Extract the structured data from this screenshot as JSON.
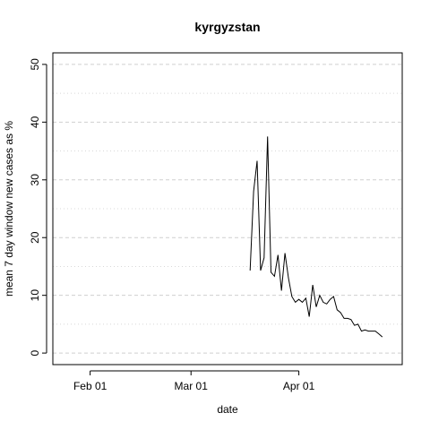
{
  "chart_data": {
    "type": "line",
    "title": "kyrgyzstan",
    "xlabel": "date",
    "ylabel": "mean  7  day window new cases as %",
    "ylim": [
      0,
      50
    ],
    "xlim": [
      "2020-01-25",
      "2020-04-27"
    ],
    "y_ticks": [
      "0",
      "10",
      "20",
      "30",
      "40",
      "50"
    ],
    "y_tick_values": [
      0,
      10,
      20,
      30,
      40,
      50
    ],
    "x_ticks": [
      {
        "label": "Feb 01",
        "date": "2020-02-01"
      },
      {
        "label": "Mar 01",
        "date": "2020-03-01"
      },
      {
        "label": "Apr 01",
        "date": "2020-04-01"
      }
    ],
    "grid": true,
    "series": [
      {
        "color": "#000000",
        "points": [
          {
            "x": "2020-03-18",
            "y": 14.3
          },
          {
            "x": "2020-03-19",
            "y": 28.0
          },
          {
            "x": "2020-03-20",
            "y": 33.3
          },
          {
            "x": "2020-03-21",
            "y": 14.3
          },
          {
            "x": "2020-03-22",
            "y": 16.5
          },
          {
            "x": "2020-03-23",
            "y": 37.5
          },
          {
            "x": "2020-03-24",
            "y": 14.0
          },
          {
            "x": "2020-03-25",
            "y": 13.3
          },
          {
            "x": "2020-03-26",
            "y": 17.0
          },
          {
            "x": "2020-03-27",
            "y": 10.8
          },
          {
            "x": "2020-03-28",
            "y": 17.3
          },
          {
            "x": "2020-03-29",
            "y": 13.0
          },
          {
            "x": "2020-03-30",
            "y": 9.8
          },
          {
            "x": "2020-03-31",
            "y": 8.8
          },
          {
            "x": "2020-04-01",
            "y": 9.3
          },
          {
            "x": "2020-04-02",
            "y": 8.8
          },
          {
            "x": "2020-04-03",
            "y": 9.5
          },
          {
            "x": "2020-04-04",
            "y": 6.3
          },
          {
            "x": "2020-04-05",
            "y": 11.8
          },
          {
            "x": "2020-04-06",
            "y": 8.0
          },
          {
            "x": "2020-04-07",
            "y": 10.0
          },
          {
            "x": "2020-04-08",
            "y": 8.8
          },
          {
            "x": "2020-04-09",
            "y": 8.5
          },
          {
            "x": "2020-04-10",
            "y": 9.3
          },
          {
            "x": "2020-04-11",
            "y": 9.8
          },
          {
            "x": "2020-04-12",
            "y": 7.5
          },
          {
            "x": "2020-04-13",
            "y": 7.0
          },
          {
            "x": "2020-04-14",
            "y": 6.0
          },
          {
            "x": "2020-04-15",
            "y": 6.0
          },
          {
            "x": "2020-04-16",
            "y": 5.8
          },
          {
            "x": "2020-04-17",
            "y": 4.8
          },
          {
            "x": "2020-04-18",
            "y": 5.0
          },
          {
            "x": "2020-04-19",
            "y": 3.8
          },
          {
            "x": "2020-04-20",
            "y": 4.0
          },
          {
            "x": "2020-04-21",
            "y": 3.8
          },
          {
            "x": "2020-04-22",
            "y": 3.8
          },
          {
            "x": "2020-04-23",
            "y": 3.8
          },
          {
            "x": "2020-04-24",
            "y": 3.3
          },
          {
            "x": "2020-04-25",
            "y": 2.8
          }
        ]
      }
    ]
  }
}
